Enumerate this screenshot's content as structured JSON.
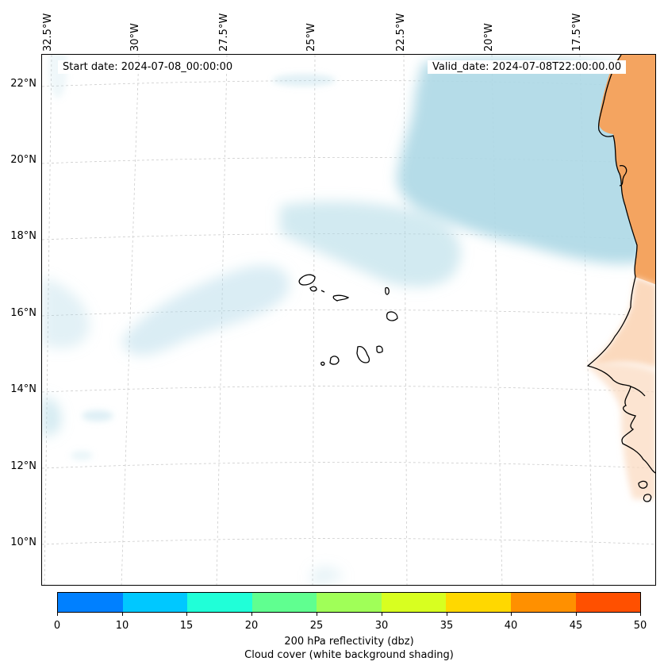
{
  "map": {
    "start_date": "Start date: 2024-07-08_00:00:00",
    "valid_date": "Valid_date: 2024-07-08T22:00:00.00",
    "longitude_labels": [
      "32.5°W",
      "30°W",
      "27.5°W",
      "25°W",
      "22.5°W",
      "20°W",
      "17.5°W"
    ],
    "latitude_labels": [
      "22°N",
      "20°N",
      "18°N",
      "16°N",
      "14°N",
      "12°N",
      "10°N"
    ],
    "features": {
      "cloud_shading": "light blue cloud cover over the Atlantic north of the islands",
      "land": "West African coast (Mauritania, Senegal) with orange/peach reflectivity shading",
      "islands": "Cape Verde islands"
    }
  },
  "colorbar": {
    "ticks": [
      "0",
      "10",
      "15",
      "20",
      "25",
      "30",
      "35",
      "40",
      "45",
      "50"
    ],
    "colors": [
      "#0080ff",
      "#00c8ff",
      "#20ffd8",
      "#60ff90",
      "#a0ff58",
      "#d8ff20",
      "#ffd800",
      "#ff9000",
      "#ff5000"
    ],
    "label_line1": "200 hPa reflectivity (dbz)",
    "label_line2": "Cloud cover (white background shading)"
  },
  "palette": {
    "cloud": "#add8e6",
    "land_orange": "#f4a460",
    "land_light": "#fbd9bd",
    "coast": "#000000",
    "grid": "#cccccc"
  }
}
